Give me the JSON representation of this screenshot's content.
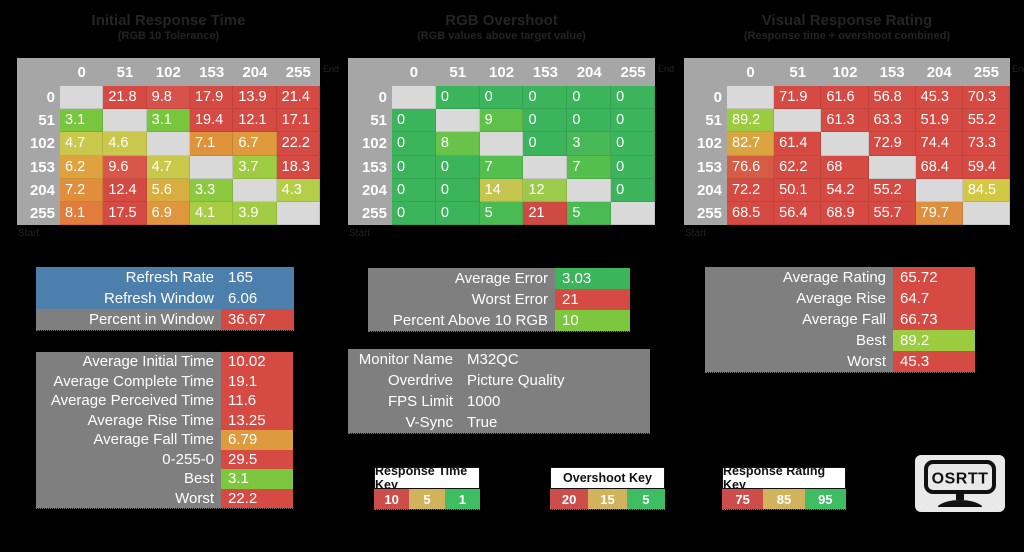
{
  "tables": [
    {
      "name": "initial-response-time",
      "title": "Initial Response Time",
      "subtitle": "(RGB 10 Tolerance)",
      "axis": {
        "col_label": "End",
        "row_label": "Start"
      },
      "col_headers": [
        "0",
        "51",
        "102",
        "153",
        "204",
        "255"
      ],
      "row_headers": [
        "0",
        "51",
        "102",
        "153",
        "204",
        "255"
      ],
      "rows": [
        [
          [
            "",
            "#d9d9d9"
          ],
          [
            "21.8",
            "#d54a42"
          ],
          [
            "9.8",
            "#d6524a"
          ],
          [
            "17.9",
            "#d54a42"
          ],
          [
            "13.9",
            "#d54a42"
          ],
          [
            "21.4",
            "#d54a42"
          ]
        ],
        [
          [
            "3.1",
            "#77c63e"
          ],
          [
            "",
            "#d9d9d9"
          ],
          [
            "3.1",
            "#77c63e"
          ],
          [
            "19.4",
            "#d54a42"
          ],
          [
            "12.1",
            "#d54a42"
          ],
          [
            "17.1",
            "#d54a42"
          ]
        ],
        [
          [
            "4.7",
            "#c9c84c"
          ],
          [
            "4.6",
            "#c9c84c"
          ],
          [
            "",
            "#d9d9d9"
          ],
          [
            "7.1",
            "#df943c"
          ],
          [
            "6.7",
            "#df9a3d"
          ],
          [
            "22.2",
            "#d54a42"
          ]
        ],
        [
          [
            "6.2",
            "#dfa23e"
          ],
          [
            "9.6",
            "#d8564a"
          ],
          [
            "4.7",
            "#c9c84c"
          ],
          [
            "",
            "#d9d9d9"
          ],
          [
            "3.7",
            "#9fcb43"
          ],
          [
            "18.3",
            "#d54a42"
          ]
        ],
        [
          [
            "7.2",
            "#e08e3c"
          ],
          [
            "12.4",
            "#d54a42"
          ],
          [
            "5.6",
            "#d8ae40"
          ],
          [
            "3.3",
            "#8cc940"
          ],
          [
            "",
            "#d9d9d9"
          ],
          [
            "4.3",
            "#b4ce47"
          ]
        ],
        [
          [
            "8.1",
            "#e27c3d"
          ],
          [
            "17.5",
            "#d54a42"
          ],
          [
            "6.9",
            "#df963d"
          ],
          [
            "4.1",
            "#a9cc45"
          ],
          [
            "3.9",
            "#a4cb44"
          ],
          [
            "",
            "#d9d9d9"
          ]
        ]
      ]
    },
    {
      "name": "rgb-overshoot",
      "title": "RGB Overshoot",
      "subtitle": "(RGB values above target value)",
      "axis": {
        "col_label": "End",
        "row_label": "Start"
      },
      "col_headers": [
        "0",
        "51",
        "102",
        "153",
        "204",
        "255"
      ],
      "row_headers": [
        "0",
        "51",
        "102",
        "153",
        "204",
        "255"
      ],
      "rows": [
        [
          [
            "",
            "#d9d9d9"
          ],
          [
            "0",
            "#3cb45c"
          ],
          [
            "0",
            "#3cb45c"
          ],
          [
            "0",
            "#3cb45c"
          ],
          [
            "0",
            "#3cb45c"
          ],
          [
            "0",
            "#3cb45c"
          ]
        ],
        [
          [
            "0",
            "#3cb45c"
          ],
          [
            "",
            "#d9d9d9"
          ],
          [
            "9",
            "#60c14a"
          ],
          [
            "0",
            "#3cb45c"
          ],
          [
            "0",
            "#3cb45c"
          ],
          [
            "0",
            "#3cb45c"
          ]
        ],
        [
          [
            "0",
            "#3cb45c"
          ],
          [
            "8",
            "#68c34b"
          ],
          [
            "",
            "#d9d9d9"
          ],
          [
            "0",
            "#3cb45c"
          ],
          [
            "3",
            "#48b956"
          ],
          [
            "0",
            "#3cb45c"
          ]
        ],
        [
          [
            "0",
            "#3cb45c"
          ],
          [
            "0",
            "#3cb45c"
          ],
          [
            "7",
            "#55bf4e"
          ],
          [
            "",
            "#d9d9d9"
          ],
          [
            "7",
            "#55bf4e"
          ],
          [
            "0",
            "#3cb45c"
          ]
        ],
        [
          [
            "0",
            "#3cb45c"
          ],
          [
            "0",
            "#3cb45c"
          ],
          [
            "14",
            "#c4c44f"
          ],
          [
            "12",
            "#9cca4b"
          ],
          [
            "",
            "#d9d9d9"
          ],
          [
            "0",
            "#3cb45c"
          ]
        ],
        [
          [
            "0",
            "#3cb45c"
          ],
          [
            "0",
            "#3cb45c"
          ],
          [
            "5",
            "#4abb52"
          ],
          [
            "21",
            "#cf4a43"
          ],
          [
            "5",
            "#4abb52"
          ],
          [
            "",
            "#d9d9d9"
          ]
        ]
      ]
    },
    {
      "name": "visual-response-rating",
      "title": "Visual Response Rating",
      "subtitle": "(Response time + overshoot combined)",
      "axis": {
        "col_label": "End",
        "row_label": "Start"
      },
      "col_headers": [
        "0",
        "51",
        "102",
        "153",
        "204",
        "255"
      ],
      "row_headers": [
        "0",
        "51",
        "102",
        "153",
        "204",
        "255"
      ],
      "rows": [
        [
          [
            "",
            "#d9d9d9"
          ],
          [
            "71.9",
            "#d54a42"
          ],
          [
            "61.6",
            "#d54a42"
          ],
          [
            "56.8",
            "#d54a42"
          ],
          [
            "45.3",
            "#d54a42"
          ],
          [
            "70.3",
            "#d54a42"
          ]
        ],
        [
          [
            "89.2",
            "#9bcb3e"
          ],
          [
            "",
            "#d9d9d9"
          ],
          [
            "61.3",
            "#d54a42"
          ],
          [
            "63.3",
            "#d54a42"
          ],
          [
            "51.9",
            "#d54a42"
          ],
          [
            "55.2",
            "#d54a42"
          ]
        ],
        [
          [
            "82.7",
            "#daa53f"
          ],
          [
            "61.4",
            "#d54a42"
          ],
          [
            "",
            "#d9d9d9"
          ],
          [
            "72.9",
            "#d54a42"
          ],
          [
            "74.4",
            "#d54a42"
          ],
          [
            "73.3",
            "#d54a42"
          ]
        ],
        [
          [
            "76.6",
            "#d75c46"
          ],
          [
            "62.2",
            "#d54a42"
          ],
          [
            "68",
            "#d54a42"
          ],
          [
            "",
            "#d9d9d9"
          ],
          [
            "68.4",
            "#d54a42"
          ],
          [
            "59.4",
            "#d54a42"
          ]
        ],
        [
          [
            "72.2",
            "#d54a42"
          ],
          [
            "50.1",
            "#d54a42"
          ],
          [
            "54.2",
            "#d54a42"
          ],
          [
            "55.2",
            "#d54a42"
          ],
          [
            "",
            "#d9d9d9"
          ],
          [
            "84.5",
            "#d3c844"
          ]
        ],
        [
          [
            "68.5",
            "#d54a42"
          ],
          [
            "56.4",
            "#d54a42"
          ],
          [
            "68.9",
            "#d54a42"
          ],
          [
            "55.7",
            "#d54a42"
          ],
          [
            "79.7",
            "#dd8e3e"
          ],
          [
            "",
            "#d9d9d9"
          ]
        ]
      ]
    }
  ],
  "stat_blocks": {
    "refresh": {
      "rows": [
        [
          "Refresh Rate",
          "165",
          "#4d7fac",
          "#4d7fac"
        ],
        [
          "Refresh Window",
          "6.06",
          "#4d7fac",
          "#4d7fac"
        ],
        [
          "Percent in Window",
          "36.67",
          "#7f7f7f",
          "#d24a41"
        ]
      ]
    },
    "averages": {
      "rows": [
        [
          "Average Initial Time",
          "10.02",
          "#7f7f7f",
          "#d54a42"
        ],
        [
          "Average Complete Time",
          "19.1",
          "#7f7f7f",
          "#d54a42"
        ],
        [
          "Average Perceived Time",
          "11.6",
          "#7f7f7f",
          "#d54a42"
        ],
        [
          "Average Rise Time",
          "13.25",
          "#7f7f7f",
          "#d54a42"
        ],
        [
          "Average Fall Time",
          "6.79",
          "#7f7f7f",
          "#dd9b3d"
        ],
        [
          "0-255-0",
          "29.5",
          "#7f7f7f",
          "#d54a42"
        ],
        [
          "Best",
          "3.1",
          "#7f7f7f",
          "#7cc73e"
        ],
        [
          "Worst",
          "22.2",
          "#7f7f7f",
          "#d54a42"
        ]
      ]
    },
    "errors": {
      "rows": [
        [
          "Average Error",
          "3.03",
          "#7f7f7f",
          "#3cb45c"
        ],
        [
          "Worst Error",
          "21",
          "#7f7f7f",
          "#d54a42"
        ],
        [
          "Percent Above 10 RGB",
          "10",
          "#7f7f7f",
          "#7cc73e"
        ]
      ]
    },
    "monitor": {
      "rows": [
        [
          "Monitor Name",
          "M32QC",
          "#7f7f7f",
          "#7f7f7f"
        ],
        [
          "Overdrive",
          "Picture Quality",
          "#7f7f7f",
          "#7f7f7f"
        ],
        [
          "FPS Limit",
          "1000",
          "#7f7f7f",
          "#7f7f7f"
        ],
        [
          "V-Sync",
          "True",
          "#7f7f7f",
          "#7f7f7f"
        ]
      ]
    },
    "rating": {
      "rows": [
        [
          "Average Rating",
          "65.72",
          "#7f7f7f",
          "#d54a42"
        ],
        [
          "Average Rise",
          "64.7",
          "#7f7f7f",
          "#d54a42"
        ],
        [
          "Average Fall",
          "66.73",
          "#7f7f7f",
          "#d54a42"
        ],
        [
          "Best",
          "89.2",
          "#7f7f7f",
          "#9bcb3e"
        ],
        [
          "Worst",
          "45.3",
          "#7f7f7f",
          "#d54a42"
        ]
      ]
    }
  },
  "keys": [
    {
      "title": "Response Time Key",
      "cells": [
        [
          "10",
          "#cb4e4a"
        ],
        [
          "5",
          "#d2b25c"
        ],
        [
          "1",
          "#3ebd62"
        ]
      ]
    },
    {
      "title": "Overshoot Key",
      "cells": [
        [
          "20",
          "#cb4e4a"
        ],
        [
          "15",
          "#d2b25c"
        ],
        [
          "5",
          "#3ebd62"
        ]
      ]
    },
    {
      "title": "Response Rating Key",
      "cells": [
        [
          "75",
          "#cb4e4a"
        ],
        [
          "85",
          "#d2b25c"
        ],
        [
          "95",
          "#3ebd62"
        ]
      ]
    }
  ],
  "logo": {
    "text": "OSRTT"
  }
}
